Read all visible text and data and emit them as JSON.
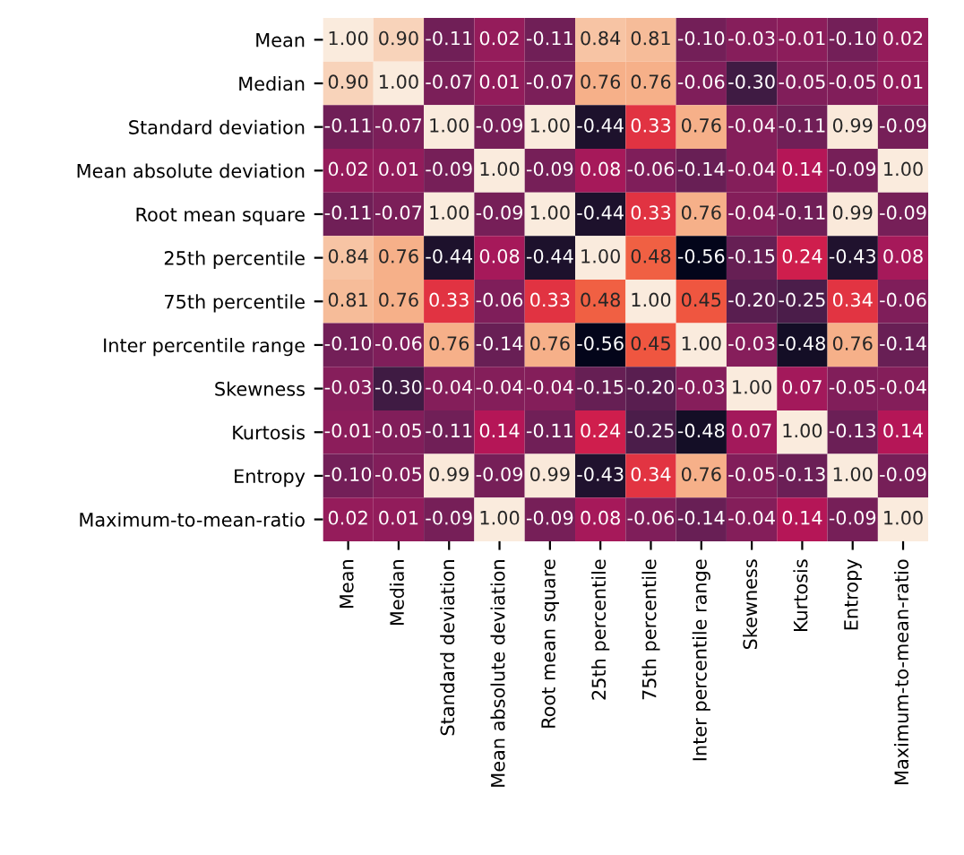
{
  "chart_data": {
    "type": "heatmap",
    "categories": [
      "Mean",
      "Median",
      "Standard deviation",
      "Mean absolute deviation",
      "Root mean square",
      "25th percentile",
      "75th percentile",
      "Inter percentile range",
      "Skewness",
      "Kurtosis",
      "Entropy",
      "Maximum-to-mean-ratio"
    ],
    "y_categories": [
      "Mean",
      "Median",
      "Standard deviation",
      "Mean absolute deviation",
      "Root mean square",
      "25th percentile",
      "75th percentile",
      "Inter percentile range",
      "Skewness",
      "Kurtosis",
      "Entropy",
      "Maximum-to-mean-ratio"
    ],
    "cells": [
      [
        1.0,
        0.9,
        -0.11,
        0.02,
        -0.11,
        0.84,
        0.81,
        -0.1,
        -0.03,
        -0.01,
        -0.1,
        0.02
      ],
      [
        0.9,
        1.0,
        -0.07,
        0.01,
        -0.07,
        0.76,
        0.76,
        -0.06,
        -0.3,
        -0.05,
        -0.05,
        0.01
      ],
      [
        -0.11,
        -0.07,
        1.0,
        -0.09,
        1.0,
        -0.44,
        0.33,
        0.76,
        -0.04,
        -0.11,
        0.99,
        -0.09
      ],
      [
        0.02,
        0.01,
        -0.09,
        1.0,
        -0.09,
        0.08,
        -0.06,
        -0.14,
        -0.04,
        0.14,
        -0.09,
        1.0
      ],
      [
        -0.11,
        -0.07,
        1.0,
        -0.09,
        1.0,
        -0.44,
        0.33,
        0.76,
        -0.04,
        -0.11,
        0.99,
        -0.09
      ],
      [
        0.84,
        0.76,
        -0.44,
        0.08,
        -0.44,
        1.0,
        0.48,
        -0.56,
        -0.15,
        0.24,
        -0.43,
        0.08
      ],
      [
        0.81,
        0.76,
        0.33,
        -0.06,
        0.33,
        0.48,
        1.0,
        0.45,
        -0.2,
        -0.25,
        0.34,
        -0.06
      ],
      [
        -0.1,
        -0.06,
        0.76,
        -0.14,
        0.76,
        -0.56,
        0.45,
        1.0,
        -0.03,
        -0.48,
        0.76,
        -0.14
      ],
      [
        -0.03,
        -0.3,
        -0.04,
        -0.04,
        -0.04,
        -0.15,
        -0.2,
        -0.03,
        1.0,
        0.07,
        -0.05,
        -0.04
      ],
      [
        -0.01,
        -0.05,
        -0.11,
        0.14,
        -0.11,
        0.24,
        -0.25,
        -0.48,
        0.07,
        1.0,
        -0.13,
        0.14
      ],
      [
        -0.1,
        -0.05,
        0.99,
        -0.09,
        0.99,
        -0.43,
        0.34,
        0.76,
        -0.05,
        -0.13,
        1.0,
        -0.09
      ],
      [
        0.02,
        0.01,
        -0.09,
        1.0,
        -0.09,
        0.08,
        -0.06,
        -0.14,
        -0.04,
        0.14,
        -0.09,
        1.0
      ]
    ],
    "cell_labels": [
      [
        "1.00",
        "0.90",
        "-0.11",
        "0.02",
        "-0.11",
        "0.84",
        "0.81",
        "-0.10",
        "-0.03",
        "-0.01",
        "-0.10",
        "0.02"
      ],
      [
        "0.90",
        "1.00",
        "-0.07",
        "0.01",
        "-0.07",
        "0.76",
        "0.76",
        "-0.06",
        "-0.30",
        "-0.05",
        "-0.05",
        "0.01"
      ],
      [
        "-0.11",
        "-0.07",
        "1.00",
        "-0.09",
        "1.00",
        "-0.44",
        "0.33",
        "0.76",
        "-0.04",
        "-0.11",
        "0.99",
        "-0.09"
      ],
      [
        "0.02",
        "0.01",
        "-0.09",
        "1.00",
        "-0.09",
        "0.08",
        "-0.06",
        "-0.14",
        "-0.04",
        "0.14",
        "-0.09",
        "1.00"
      ],
      [
        "-0.11",
        "-0.07",
        "1.00",
        "-0.09",
        "1.00",
        "-0.44",
        "0.33",
        "0.76",
        "-0.04",
        "-0.11",
        "0.99",
        "-0.09"
      ],
      [
        "0.84",
        "0.76",
        "-0.44",
        "0.08",
        "-0.44",
        "1.00",
        "0.48",
        "-0.56",
        "-0.15",
        "0.24",
        "-0.43",
        "0.08"
      ],
      [
        "0.81",
        "0.76",
        "0.33",
        "-0.06",
        "0.33",
        "0.48",
        "1.00",
        "0.45",
        "-0.20",
        "-0.25",
        "0.34",
        "-0.06"
      ],
      [
        "-0.10",
        "-0.06",
        "0.76",
        "-0.14",
        "0.76",
        "-0.56",
        "0.45",
        "1.00",
        "-0.03",
        "-0.48",
        "0.76",
        "-0.14"
      ],
      [
        "-0.03",
        "-0.30",
        "-0.04",
        "-0.04",
        "-0.04",
        "-0.15",
        "-0.20",
        "-0.03",
        "1.00",
        "0.07",
        "-0.05",
        "-0.04"
      ],
      [
        "-0.01",
        "-0.05",
        "-0.11",
        "0.14",
        "-0.11",
        "0.24",
        "-0.25",
        "-0.48",
        "0.07",
        "1.00",
        "-0.13",
        "0.14"
      ],
      [
        "-0.10",
        "-0.05",
        "0.99",
        "-0.09",
        "0.99",
        "-0.43",
        "0.34",
        "0.76",
        "-0.05",
        "-0.13",
        "1.00",
        "-0.09"
      ],
      [
        "0.02",
        "0.01",
        "-0.09",
        "1.00",
        "-0.09",
        "0.08",
        "-0.06",
        "-0.14",
        "-0.04",
        "0.14",
        "-0.09",
        "1.00"
      ]
    ]
  }
}
